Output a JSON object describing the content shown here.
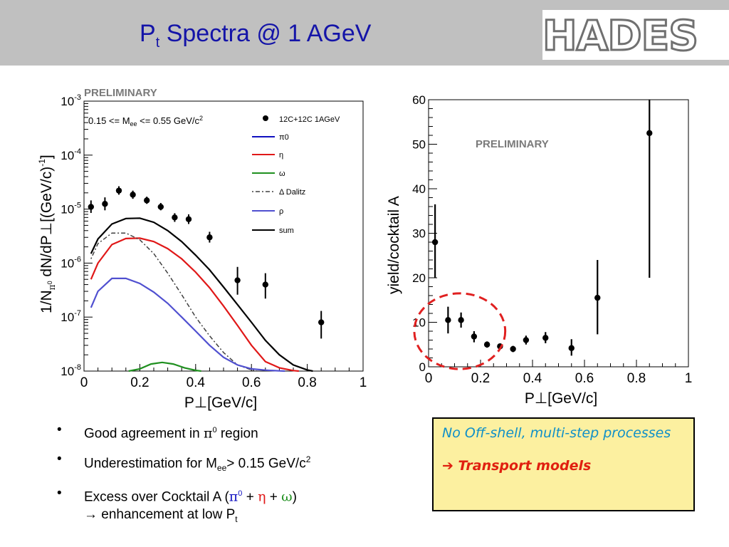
{
  "header": {
    "title_main": "P",
    "title_sub": "t",
    "title_rest": " Spectra @ 1 AGeV",
    "logo": "HADES",
    "background": "#c0c0c0",
    "title_color": "#1414a8"
  },
  "chart_data": [
    {
      "type": "scatter",
      "label": "PRELIMINARY",
      "annotation": "0.15 <= M_ee <= 0.55 GeV/c^2",
      "xlabel": "P⊥[GeV/c]",
      "ylabel": "1/Nπ0 dN/dP⊥[(GeV/c)^-1]",
      "xlim": [
        0,
        1
      ],
      "ylim": [
        1e-08,
        0.001
      ],
      "yscale": "log",
      "grid": false,
      "legend_position": "top-right",
      "x_ticks": [
        "0",
        "0.2",
        "0.4",
        "0.6",
        "0.8",
        "1"
      ],
      "y_ticks": [
        "10-8",
        "10-7",
        "10-6",
        "10-5",
        "10-4",
        "10-3"
      ],
      "data_series": {
        "name": "12C+12C 1AGeV",
        "points": [
          {
            "x": 0.025,
            "y": 1.1e-05,
            "lo": 8.5e-06,
            "hi": 1.45e-05
          },
          {
            "x": 0.075,
            "y": 1.25e-05,
            "lo": 9.5e-06,
            "hi": 1.65e-05
          },
          {
            "x": 0.125,
            "y": 2.2e-05,
            "lo": 1.85e-05,
            "hi": 2.65e-05
          },
          {
            "x": 0.175,
            "y": 1.85e-05,
            "lo": 1.55e-05,
            "hi": 2.2e-05
          },
          {
            "x": 0.225,
            "y": 1.45e-05,
            "lo": 1.25e-05,
            "hi": 1.7e-05
          },
          {
            "x": 0.275,
            "y": 1.1e-05,
            "lo": 9.5e-06,
            "hi": 1.3e-05
          },
          {
            "x": 0.325,
            "y": 7e-06,
            "lo": 5.8e-06,
            "hi": 8.4e-06
          },
          {
            "x": 0.375,
            "y": 6.5e-06,
            "lo": 5.3e-06,
            "hi": 8e-06
          },
          {
            "x": 0.45,
            "y": 3e-06,
            "lo": 2.4e-06,
            "hi": 3.8e-06
          },
          {
            "x": 0.55,
            "y": 4.8e-07,
            "lo": 2.6e-07,
            "hi": 8.5e-07
          },
          {
            "x": 0.65,
            "y": 4e-07,
            "lo": 2.2e-07,
            "hi": 6.5e-07
          },
          {
            "x": 0.85,
            "y": 8e-08,
            "lo": 4e-08,
            "hi": 1.3e-07
          }
        ]
      },
      "curves": [
        {
          "name": "π0",
          "color": "#1010c0",
          "x": [],
          "y": []
        },
        {
          "name": "η",
          "color": "#e01818",
          "x": [
            0.025,
            0.05,
            0.1,
            0.15,
            0.2,
            0.25,
            0.3,
            0.35,
            0.4,
            0.45,
            0.5,
            0.55,
            0.6,
            0.65,
            0.7,
            0.75,
            0.77
          ],
          "y": [
            5e-07,
            1e-06,
            2.2e-06,
            2.85e-06,
            2.9e-06,
            2.5e-06,
            1.85e-06,
            1.2e-06,
            6.8e-07,
            3.5e-07,
            1.6e-07,
            7e-08,
            3e-08,
            1.5e-08,
            1.15e-08,
            1.02e-08,
            1e-08
          ]
        },
        {
          "name": "ω",
          "color": "#209020",
          "x": [
            0.16,
            0.2,
            0.24,
            0.28,
            0.32,
            0.36,
            0.4,
            0.42
          ],
          "y": [
            1e-08,
            1.1e-08,
            1.35e-08,
            1.45e-08,
            1.35e-08,
            1.15e-08,
            1.03e-08,
            1e-08
          ]
        },
        {
          "name": "Δ Dalitz",
          "color": "#404040",
          "dashed": true,
          "x": [
            0.025,
            0.05,
            0.1,
            0.15,
            0.2,
            0.25,
            0.3,
            0.35,
            0.4,
            0.45,
            0.5,
            0.55,
            0.6,
            0.62
          ],
          "y": [
            1.2e-06,
            2.3e-06,
            3.6e-06,
            3.6e-06,
            2.7e-06,
            1.5e-06,
            6.5e-07,
            2.6e-07,
            1e-07,
            4.5e-08,
            2.2e-08,
            1.3e-08,
            1.05e-08,
            1e-08
          ]
        },
        {
          "name": "ρ",
          "color": "#5050d0",
          "x": [
            0.025,
            0.05,
            0.1,
            0.15,
            0.2,
            0.25,
            0.3,
            0.35,
            0.4,
            0.45,
            0.5,
            0.55,
            0.6,
            0.65,
            0.7,
            0.72
          ],
          "y": [
            1.5e-07,
            3e-07,
            5.2e-07,
            5.2e-07,
            4.2e-07,
            2.9e-07,
            1.8e-07,
            1e-07,
            5.5e-08,
            3e-08,
            1.8e-08,
            1.3e-08,
            1.1e-08,
            1.04e-08,
            1.01e-08,
            1e-08
          ]
        },
        {
          "name": "sum",
          "color": "#000000",
          "x": [
            0.025,
            0.05,
            0.1,
            0.15,
            0.2,
            0.25,
            0.3,
            0.35,
            0.4,
            0.45,
            0.5,
            0.55,
            0.6,
            0.65,
            0.7,
            0.75,
            0.8,
            0.82
          ],
          "y": [
            1.5e-06,
            2.8e-06,
            5.3e-06,
            6.7e-06,
            6.8e-06,
            5.7e-06,
            4e-06,
            2.5e-06,
            1.4e-06,
            7.5e-07,
            3.6e-07,
            1.7e-07,
            8e-08,
            3.7e-08,
            2e-08,
            1.3e-08,
            1.05e-08,
            1e-08
          ]
        }
      ]
    },
    {
      "type": "scatter",
      "label": "PRELIMINARY",
      "xlabel": "P⊥[GeV/c]",
      "ylabel": "yield/cocktail A",
      "xlim": [
        0,
        1
      ],
      "ylim": [
        0,
        60
      ],
      "grid": false,
      "x_ticks": [
        "0",
        "0.2",
        "0.4",
        "0.6",
        "0.8",
        "1"
      ],
      "y_ticks": [
        "0",
        "10",
        "20",
        "30",
        "40",
        "50",
        "60"
      ],
      "points": [
        {
          "x": 0.025,
          "y": 28,
          "lo": 20,
          "hi": 36.5
        },
        {
          "x": 0.075,
          "y": 10.5,
          "lo": 7.5,
          "hi": 13.5
        },
        {
          "x": 0.125,
          "y": 10.5,
          "lo": 8.8,
          "hi": 12.2
        },
        {
          "x": 0.175,
          "y": 6.8,
          "lo": 5.5,
          "hi": 8
        },
        {
          "x": 0.225,
          "y": 5,
          "lo": 4.3,
          "hi": 5.7
        },
        {
          "x": 0.275,
          "y": 4.6,
          "lo": 4,
          "hi": 5.2
        },
        {
          "x": 0.325,
          "y": 4,
          "lo": 3.3,
          "hi": 4.7
        },
        {
          "x": 0.375,
          "y": 6,
          "lo": 5,
          "hi": 7
        },
        {
          "x": 0.45,
          "y": 6.5,
          "lo": 5.3,
          "hi": 7.8
        },
        {
          "x": 0.55,
          "y": 4.2,
          "lo": 2.5,
          "hi": 6.2
        },
        {
          "x": 0.65,
          "y": 15.5,
          "lo": 7.3,
          "hi": 24
        },
        {
          "x": 0.85,
          "y": 52.5,
          "lo": 20,
          "hi": 60
        }
      ],
      "highlight": {
        "shape": "dashed-ellipse",
        "color": "#e02020",
        "cx": 0.12,
        "cy": 8,
        "rx": 0.175,
        "ry": 8.5
      }
    }
  ],
  "bullets": {
    "marker": "•",
    "b1_pre": "Good agreement in ",
    "b1_greek": "π",
    "b1_sup": "0",
    "b1_post": " region",
    "b2_pre": "Underestimation for M",
    "b2_sub": "ee",
    "b2_mid": "> 0.15 GeV/c",
    "b2_sup": "2",
    "b3_pre": "Excess over Cocktail A (",
    "b3_pi": "π",
    "b3_pi_sup": "0",
    "b3_plus1": " + ",
    "b3_eta": "η",
    "b3_plus2": " + ",
    "b3_omega": "ω",
    "b3_close": ")",
    "b3_line2": "→ enhancement at low P",
    "b3_line2_sub": "t"
  },
  "note": {
    "line1": "No Off-shell, multi-step processes",
    "line2": "➔ Transport models"
  }
}
